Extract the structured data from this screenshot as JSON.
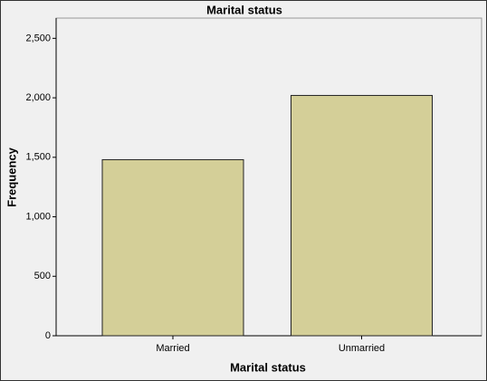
{
  "chart_data": {
    "type": "bar",
    "title": "Marital status",
    "x_label": "Marital status",
    "y_label": "Frequency",
    "categories": [
      "Married",
      "Unmarried"
    ],
    "values": [
      1480,
      2020
    ],
    "color": "#d4cf98",
    "ylim": [
      0,
      2670
    ],
    "yticks": [
      0,
      500,
      {
        "value": 1000,
        "label": "1,000"
      },
      {
        "value": 1500,
        "label": "1,500"
      },
      {
        "value": 2000,
        "label": "2,000"
      },
      {
        "value": 2500,
        "label": "2,500"
      }
    ]
  }
}
